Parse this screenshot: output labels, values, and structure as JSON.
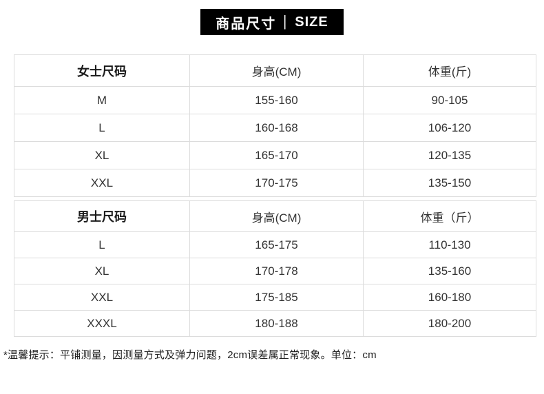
{
  "banner": {
    "title_zh": "商品尺寸",
    "divider": "|",
    "title_en": "SIZE"
  },
  "tables": [
    {
      "name": "women-size-table",
      "headers": [
        "女士尺码",
        "身高(CM)",
        "体重(斤)"
      ],
      "rows": [
        [
          "M",
          "155-160",
          "90-105"
        ],
        [
          "L",
          "160-168",
          "106-120"
        ],
        [
          "XL",
          "165-170",
          "120-135"
        ],
        [
          "XXL",
          "170-175",
          "135-150"
        ]
      ]
    },
    {
      "name": "men-size-table",
      "headers": [
        "男士尺码",
        "身高(CM)",
        "体重（斤）"
      ],
      "rows": [
        [
          "L",
          "165-175",
          "110-130"
        ],
        [
          "XL",
          "170-178",
          "135-160"
        ],
        [
          "XXL",
          "175-185",
          "160-180"
        ],
        [
          "XXXL",
          "180-188",
          "180-200"
        ]
      ]
    }
  ],
  "footer": {
    "note": "*温馨提示：平铺测量，因测量方式及弹力问题，2cm误差属正常现象。单位：cm"
  },
  "colors": {
    "banner_bg": "#000000",
    "banner_text": "#ffffff",
    "table_border": "#dcdcdc",
    "cell_text": "#333333",
    "header_text": "#1a1a1a"
  }
}
